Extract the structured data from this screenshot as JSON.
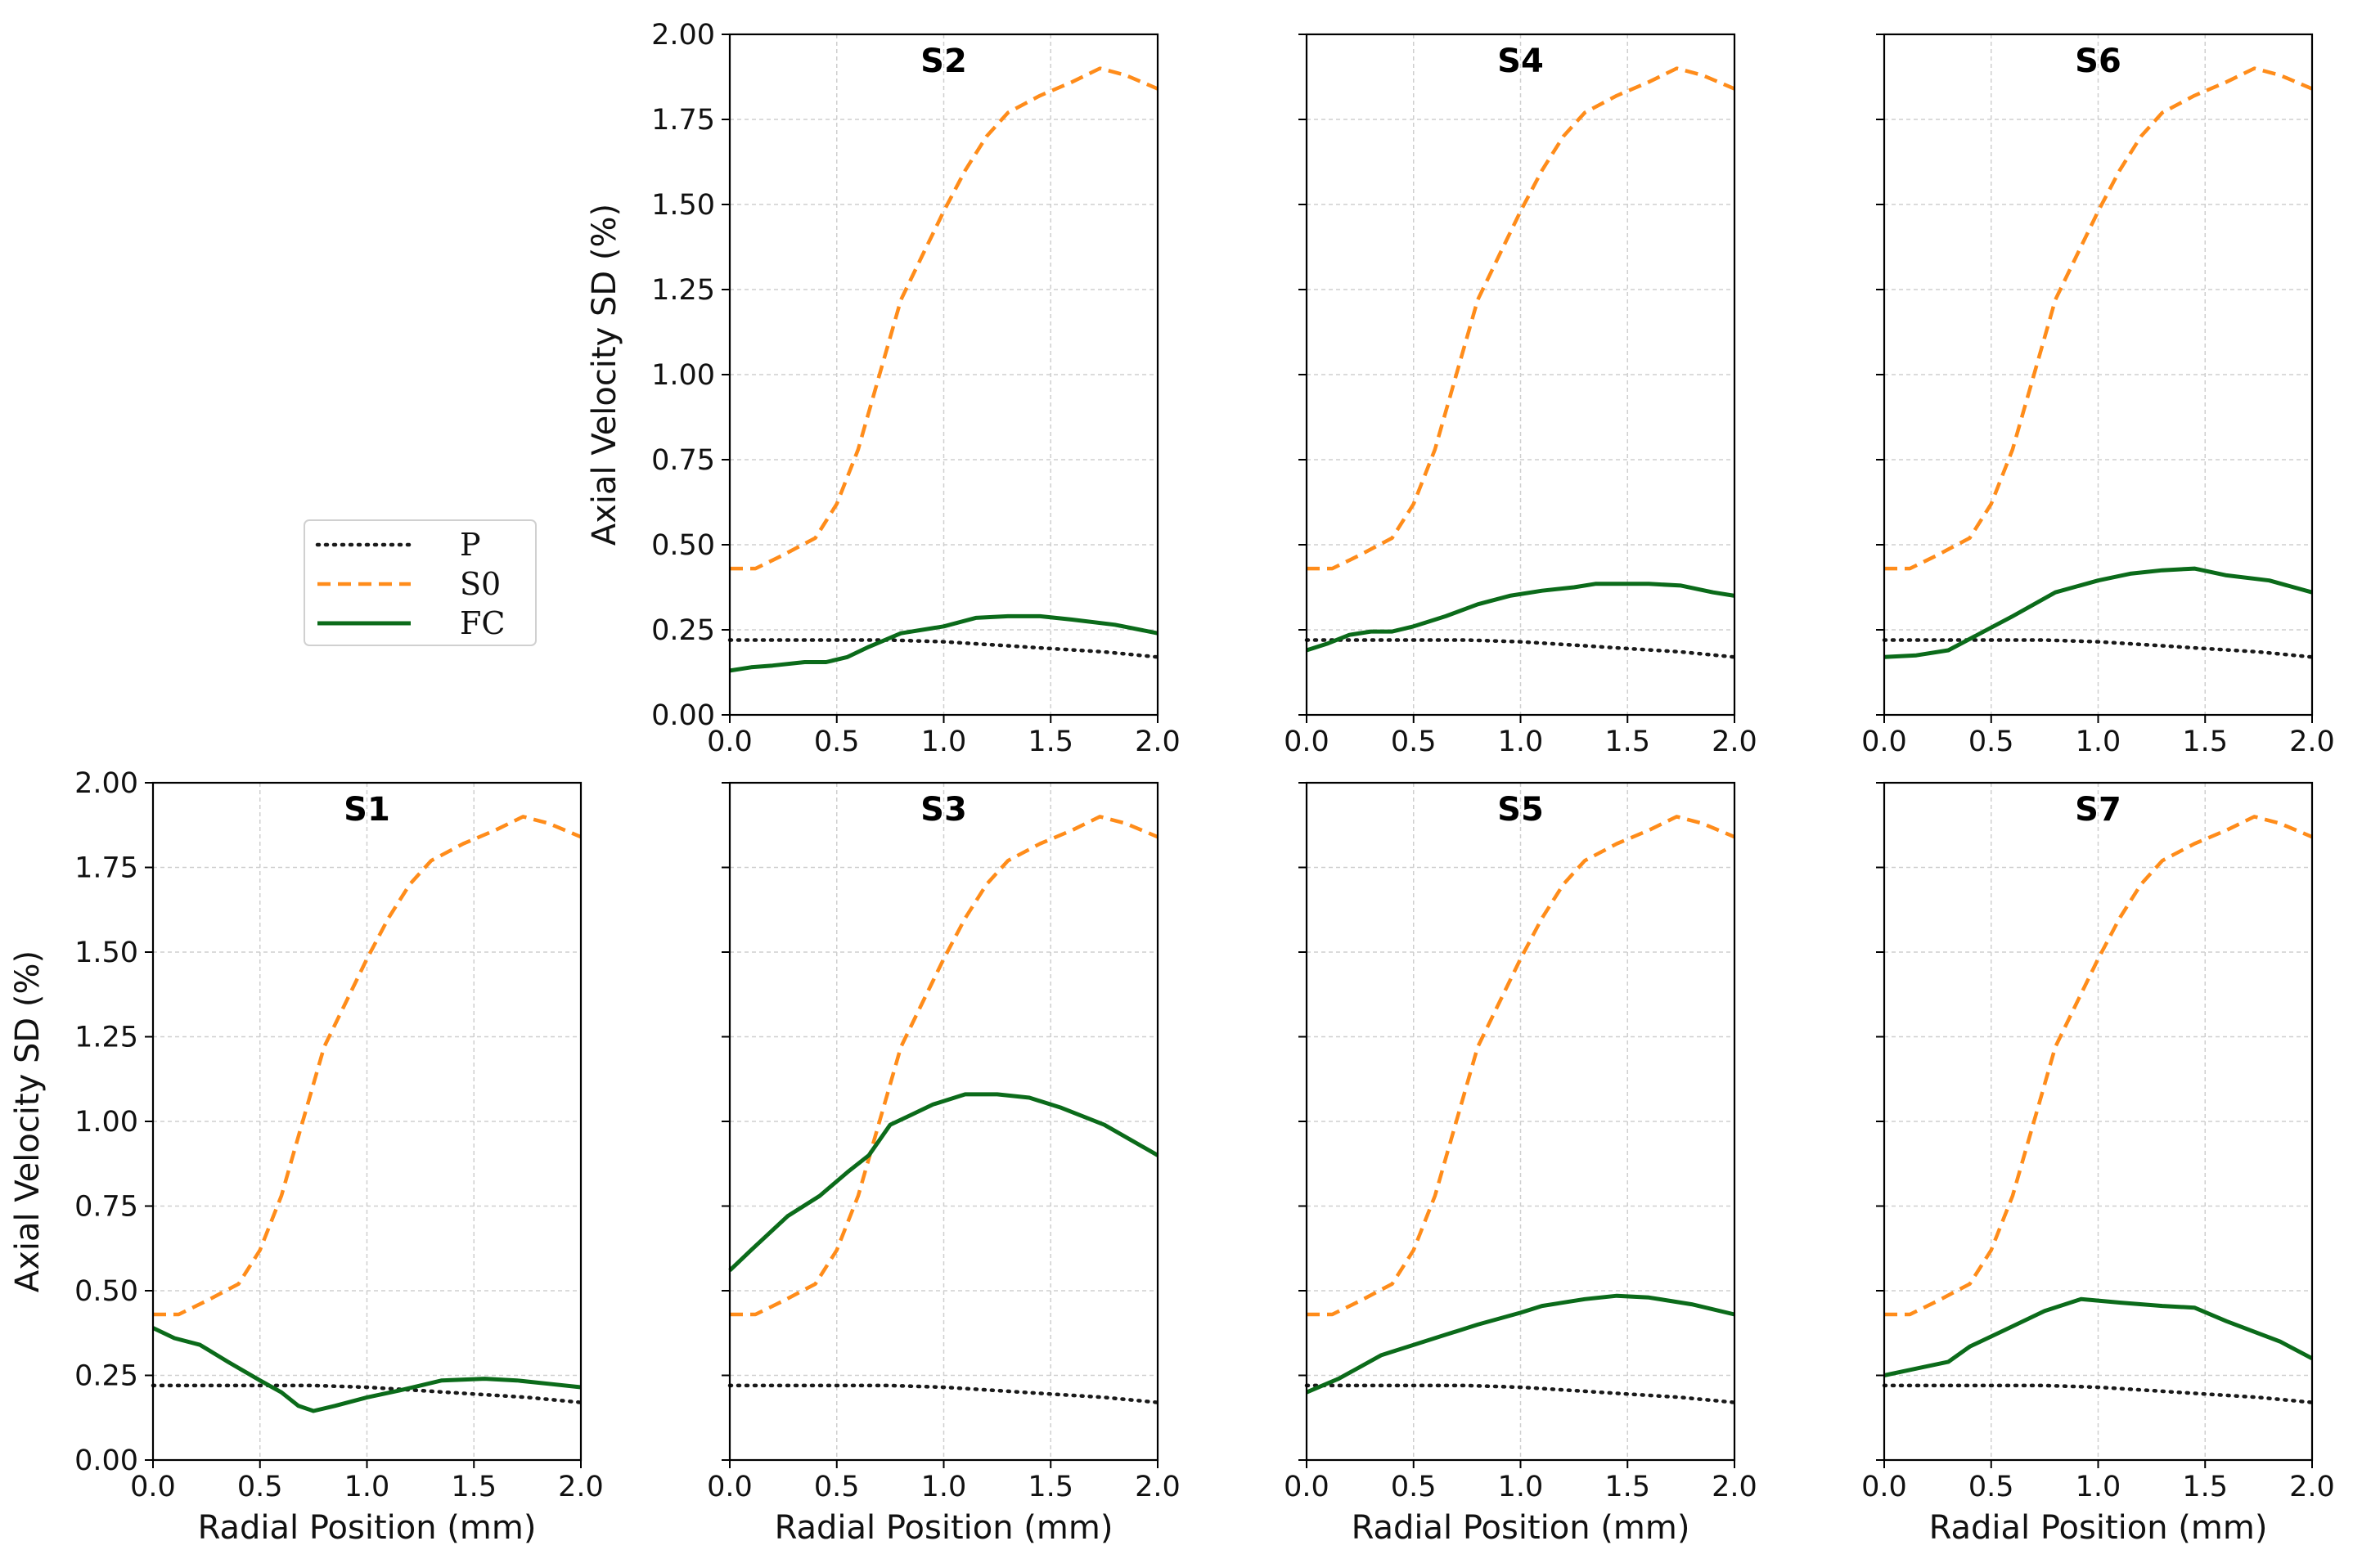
{
  "figure": {
    "legend": [
      {
        "key": "P",
        "label": "P",
        "color": "#1a1a1a",
        "style": "dotted"
      },
      {
        "key": "S0",
        "label": "S0",
        "color": "#ff8c1a",
        "style": "dashed"
      },
      {
        "key": "FC",
        "label": "FC",
        "color": "#0b6b1a",
        "style": "solid"
      }
    ],
    "xlabel": "Radial Position (mm)",
    "ylabel": "Axial Velocity SD (%)",
    "xticks": [
      "0.0",
      "0.5",
      "1.0",
      "1.5",
      "2.0"
    ],
    "yticks": [
      "0.00",
      "0.25",
      "0.50",
      "0.75",
      "1.00",
      "1.25",
      "1.50",
      "1.75",
      "2.00"
    ]
  },
  "chart_data": [
    {
      "type": "line",
      "title": "S2",
      "xlim": [
        0,
        2
      ],
      "ylim": [
        0,
        2
      ],
      "show_xlabel": false,
      "show_ylabel": true,
      "show_yticklabels": true,
      "series": [
        {
          "name": "P",
          "x": [
            0,
            0.25,
            0.5,
            0.75,
            1.0,
            1.25,
            1.5,
            1.75,
            2.0
          ],
          "y": [
            0.22,
            0.22,
            0.22,
            0.22,
            0.215,
            0.205,
            0.195,
            0.185,
            0.17
          ]
        },
        {
          "name": "S0",
          "x": [
            0,
            0.12,
            0.25,
            0.4,
            0.5,
            0.6,
            0.7,
            0.8,
            0.9,
            1.0,
            1.1,
            1.2,
            1.3,
            1.45,
            1.6,
            1.73,
            1.85,
            2.0
          ],
          "y": [
            0.43,
            0.43,
            0.47,
            0.52,
            0.62,
            0.78,
            1.0,
            1.22,
            1.35,
            1.48,
            1.6,
            1.7,
            1.77,
            1.82,
            1.86,
            1.9,
            1.88,
            1.84
          ]
        },
        {
          "name": "FC",
          "x": [
            0,
            0.1,
            0.2,
            0.35,
            0.45,
            0.55,
            0.65,
            0.8,
            1.0,
            1.15,
            1.3,
            1.45,
            1.6,
            1.8,
            2.0
          ],
          "y": [
            0.13,
            0.14,
            0.145,
            0.155,
            0.155,
            0.17,
            0.2,
            0.24,
            0.26,
            0.285,
            0.29,
            0.29,
            0.28,
            0.265,
            0.24
          ]
        }
      ]
    },
    {
      "type": "line",
      "title": "S4",
      "xlim": [
        0,
        2
      ],
      "ylim": [
        0,
        2
      ],
      "show_xlabel": false,
      "show_ylabel": false,
      "show_yticklabels": false,
      "series": [
        {
          "name": "P",
          "x": [
            0,
            0.25,
            0.5,
            0.75,
            1.0,
            1.25,
            1.5,
            1.75,
            2.0
          ],
          "y": [
            0.22,
            0.22,
            0.22,
            0.22,
            0.215,
            0.205,
            0.195,
            0.185,
            0.17
          ]
        },
        {
          "name": "S0",
          "x": [
            0,
            0.12,
            0.25,
            0.4,
            0.5,
            0.6,
            0.7,
            0.8,
            0.9,
            1.0,
            1.1,
            1.2,
            1.3,
            1.45,
            1.6,
            1.73,
            1.85,
            2.0
          ],
          "y": [
            0.43,
            0.43,
            0.47,
            0.52,
            0.62,
            0.78,
            1.0,
            1.22,
            1.35,
            1.48,
            1.6,
            1.7,
            1.77,
            1.82,
            1.86,
            1.9,
            1.88,
            1.84
          ]
        },
        {
          "name": "FC",
          "x": [
            0,
            0.1,
            0.2,
            0.3,
            0.4,
            0.5,
            0.65,
            0.8,
            0.95,
            1.1,
            1.25,
            1.35,
            1.5,
            1.6,
            1.75,
            1.9,
            2.0
          ],
          "y": [
            0.19,
            0.21,
            0.235,
            0.245,
            0.245,
            0.26,
            0.29,
            0.325,
            0.35,
            0.365,
            0.375,
            0.385,
            0.385,
            0.385,
            0.38,
            0.36,
            0.35
          ]
        }
      ]
    },
    {
      "type": "line",
      "title": "S6",
      "xlim": [
        0,
        2
      ],
      "ylim": [
        0,
        2
      ],
      "show_xlabel": false,
      "show_ylabel": false,
      "show_yticklabels": false,
      "series": [
        {
          "name": "P",
          "x": [
            0,
            0.25,
            0.5,
            0.75,
            1.0,
            1.25,
            1.5,
            1.75,
            2.0
          ],
          "y": [
            0.22,
            0.22,
            0.22,
            0.22,
            0.215,
            0.205,
            0.195,
            0.185,
            0.17
          ]
        },
        {
          "name": "S0",
          "x": [
            0,
            0.12,
            0.25,
            0.4,
            0.5,
            0.6,
            0.7,
            0.8,
            0.9,
            1.0,
            1.1,
            1.2,
            1.3,
            1.45,
            1.6,
            1.73,
            1.85,
            2.0
          ],
          "y": [
            0.43,
            0.43,
            0.47,
            0.52,
            0.62,
            0.78,
            1.0,
            1.22,
            1.35,
            1.48,
            1.6,
            1.7,
            1.77,
            1.82,
            1.86,
            1.9,
            1.88,
            1.84
          ]
        },
        {
          "name": "FC",
          "x": [
            0,
            0.15,
            0.3,
            0.45,
            0.6,
            0.8,
            1.0,
            1.15,
            1.3,
            1.45,
            1.6,
            1.8,
            2.0
          ],
          "y": [
            0.17,
            0.175,
            0.19,
            0.24,
            0.29,
            0.36,
            0.395,
            0.415,
            0.425,
            0.43,
            0.41,
            0.395,
            0.36
          ]
        }
      ]
    },
    {
      "type": "line",
      "title": "S1",
      "xlim": [
        0,
        2
      ],
      "ylim": [
        0,
        2
      ],
      "show_xlabel": true,
      "show_ylabel": true,
      "show_yticklabels": true,
      "series": [
        {
          "name": "P",
          "x": [
            0,
            0.25,
            0.5,
            0.75,
            1.0,
            1.25,
            1.5,
            1.75,
            2.0
          ],
          "y": [
            0.22,
            0.22,
            0.22,
            0.22,
            0.215,
            0.205,
            0.195,
            0.185,
            0.17
          ]
        },
        {
          "name": "S0",
          "x": [
            0,
            0.12,
            0.25,
            0.4,
            0.5,
            0.6,
            0.7,
            0.8,
            0.9,
            1.0,
            1.1,
            1.2,
            1.3,
            1.45,
            1.6,
            1.73,
            1.85,
            2.0
          ],
          "y": [
            0.43,
            0.43,
            0.47,
            0.52,
            0.62,
            0.78,
            1.0,
            1.22,
            1.35,
            1.48,
            1.6,
            1.7,
            1.77,
            1.82,
            1.86,
            1.9,
            1.88,
            1.84
          ]
        },
        {
          "name": "FC",
          "x": [
            0,
            0.1,
            0.22,
            0.35,
            0.5,
            0.6,
            0.68,
            0.75,
            0.85,
            1.0,
            1.15,
            1.35,
            1.55,
            1.7,
            1.85,
            2.0
          ],
          "y": [
            0.39,
            0.36,
            0.34,
            0.29,
            0.235,
            0.2,
            0.16,
            0.145,
            0.16,
            0.185,
            0.205,
            0.235,
            0.24,
            0.235,
            0.225,
            0.215
          ]
        }
      ]
    },
    {
      "type": "line",
      "title": "S3",
      "xlim": [
        0,
        2
      ],
      "ylim": [
        0,
        2
      ],
      "show_xlabel": true,
      "show_ylabel": false,
      "show_yticklabels": false,
      "series": [
        {
          "name": "P",
          "x": [
            0,
            0.25,
            0.5,
            0.75,
            1.0,
            1.25,
            1.5,
            1.75,
            2.0
          ],
          "y": [
            0.22,
            0.22,
            0.22,
            0.22,
            0.215,
            0.205,
            0.195,
            0.185,
            0.17
          ]
        },
        {
          "name": "S0",
          "x": [
            0,
            0.12,
            0.25,
            0.4,
            0.5,
            0.6,
            0.7,
            0.8,
            0.9,
            1.0,
            1.1,
            1.2,
            1.3,
            1.45,
            1.6,
            1.73,
            1.85,
            2.0
          ],
          "y": [
            0.43,
            0.43,
            0.47,
            0.52,
            0.62,
            0.78,
            1.0,
            1.22,
            1.35,
            1.48,
            1.6,
            1.7,
            1.77,
            1.82,
            1.86,
            1.9,
            1.88,
            1.84
          ]
        },
        {
          "name": "FC",
          "x": [
            0,
            0.1,
            0.27,
            0.42,
            0.55,
            0.65,
            0.75,
            0.85,
            0.95,
            1.1,
            1.25,
            1.4,
            1.55,
            1.75,
            2.0
          ],
          "y": [
            0.56,
            0.62,
            0.72,
            0.78,
            0.85,
            0.9,
            0.99,
            1.02,
            1.05,
            1.08,
            1.08,
            1.07,
            1.04,
            0.99,
            0.9
          ]
        }
      ]
    },
    {
      "type": "line",
      "title": "S5",
      "xlim": [
        0,
        2
      ],
      "ylim": [
        0,
        2
      ],
      "show_xlabel": true,
      "show_ylabel": false,
      "show_yticklabels": false,
      "series": [
        {
          "name": "P",
          "x": [
            0,
            0.25,
            0.5,
            0.75,
            1.0,
            1.25,
            1.5,
            1.75,
            2.0
          ],
          "y": [
            0.22,
            0.22,
            0.22,
            0.22,
            0.215,
            0.205,
            0.195,
            0.185,
            0.17
          ]
        },
        {
          "name": "S0",
          "x": [
            0,
            0.12,
            0.25,
            0.4,
            0.5,
            0.6,
            0.7,
            0.8,
            0.9,
            1.0,
            1.1,
            1.2,
            1.3,
            1.45,
            1.6,
            1.73,
            1.85,
            2.0
          ],
          "y": [
            0.43,
            0.43,
            0.47,
            0.52,
            0.62,
            0.78,
            1.0,
            1.22,
            1.35,
            1.48,
            1.6,
            1.7,
            1.77,
            1.82,
            1.86,
            1.9,
            1.88,
            1.84
          ]
        },
        {
          "name": "FC",
          "x": [
            0,
            0.15,
            0.35,
            0.5,
            0.65,
            0.8,
            1.0,
            1.1,
            1.3,
            1.45,
            1.6,
            1.8,
            2.0
          ],
          "y": [
            0.2,
            0.24,
            0.31,
            0.34,
            0.37,
            0.4,
            0.435,
            0.455,
            0.475,
            0.485,
            0.48,
            0.46,
            0.43
          ]
        }
      ]
    },
    {
      "type": "line",
      "title": "S7",
      "xlim": [
        0,
        2
      ],
      "ylim": [
        0,
        2
      ],
      "show_xlabel": true,
      "show_ylabel": false,
      "show_yticklabels": false,
      "series": [
        {
          "name": "P",
          "x": [
            0,
            0.25,
            0.5,
            0.75,
            1.0,
            1.25,
            1.5,
            1.75,
            2.0
          ],
          "y": [
            0.22,
            0.22,
            0.22,
            0.22,
            0.215,
            0.205,
            0.195,
            0.185,
            0.17
          ]
        },
        {
          "name": "S0",
          "x": [
            0,
            0.12,
            0.25,
            0.4,
            0.5,
            0.6,
            0.7,
            0.8,
            0.9,
            1.0,
            1.1,
            1.2,
            1.3,
            1.45,
            1.6,
            1.73,
            1.85,
            2.0
          ],
          "y": [
            0.43,
            0.43,
            0.47,
            0.52,
            0.62,
            0.78,
            1.0,
            1.22,
            1.35,
            1.48,
            1.6,
            1.7,
            1.77,
            1.82,
            1.86,
            1.9,
            1.88,
            1.84
          ]
        },
        {
          "name": "FC",
          "x": [
            0,
            0.15,
            0.3,
            0.4,
            0.55,
            0.75,
            0.92,
            1.1,
            1.3,
            1.45,
            1.6,
            1.85,
            2.0
          ],
          "y": [
            0.25,
            0.27,
            0.29,
            0.335,
            0.38,
            0.44,
            0.475,
            0.465,
            0.455,
            0.45,
            0.41,
            0.35,
            0.3
          ]
        }
      ]
    }
  ]
}
